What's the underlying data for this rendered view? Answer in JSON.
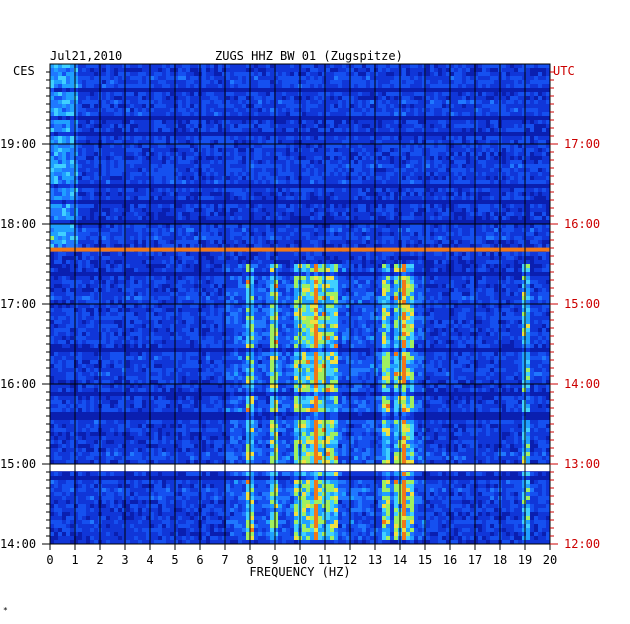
{
  "header": {
    "date": "Jul21,2010",
    "title": "ZUGS HHZ BW 01 (Zugspitze)",
    "left_tz": "CES",
    "right_tz": "UTC"
  },
  "footer_mark": "*",
  "chart_data": {
    "type": "heatmap",
    "title": "ZUGS HHZ BW 01 (Zugspitze)",
    "xlabel": "FREQUENCY (HZ)",
    "xlim": [
      0,
      20
    ],
    "x_ticks": [
      "0",
      "1",
      "2",
      "3",
      "4",
      "5",
      "6",
      "7",
      "8",
      "9",
      "10",
      "11",
      "12",
      "13",
      "14",
      "15",
      "16",
      "17",
      "18",
      "19",
      "20"
    ],
    "ylim_hours_ces": [
      14.0,
      20.0
    ],
    "y_ticks_left": [
      {
        "hour": 14,
        "label": "14:00"
      },
      {
        "hour": 15,
        "label": "15:00"
      },
      {
        "hour": 16,
        "label": "16:00"
      },
      {
        "hour": 17,
        "label": "17:00"
      },
      {
        "hour": 18,
        "label": "18:00"
      },
      {
        "hour": 19,
        "label": "19:00"
      }
    ],
    "y_ticks_right": [
      {
        "hour": 14,
        "label": "12:00"
      },
      {
        "hour": 15,
        "label": "13:00"
      },
      {
        "hour": 16,
        "label": "14:00"
      },
      {
        "hour": 17,
        "label": "15:00"
      },
      {
        "hour": 18,
        "label": "16:00"
      },
      {
        "hour": 19,
        "label": "17:00"
      }
    ],
    "colors": {
      "background": "#0a1fb0",
      "low": "#1036d8",
      "mid": "#1fa0ff",
      "high": "#9ff060",
      "peak": "#f07818",
      "axis_left": "#000000",
      "axis_right": "#cc0000"
    },
    "features": {
      "data_gap_hour": 14.96,
      "saturated_band_hour": 17.68,
      "active_frequency_bands_hz": [
        8.0,
        9.0,
        10.0,
        10.5,
        10.8,
        11.3,
        13.5,
        14.0,
        14.3,
        19.0
      ],
      "noisy_low_frequency_hz": [
        0,
        1
      ]
    }
  }
}
